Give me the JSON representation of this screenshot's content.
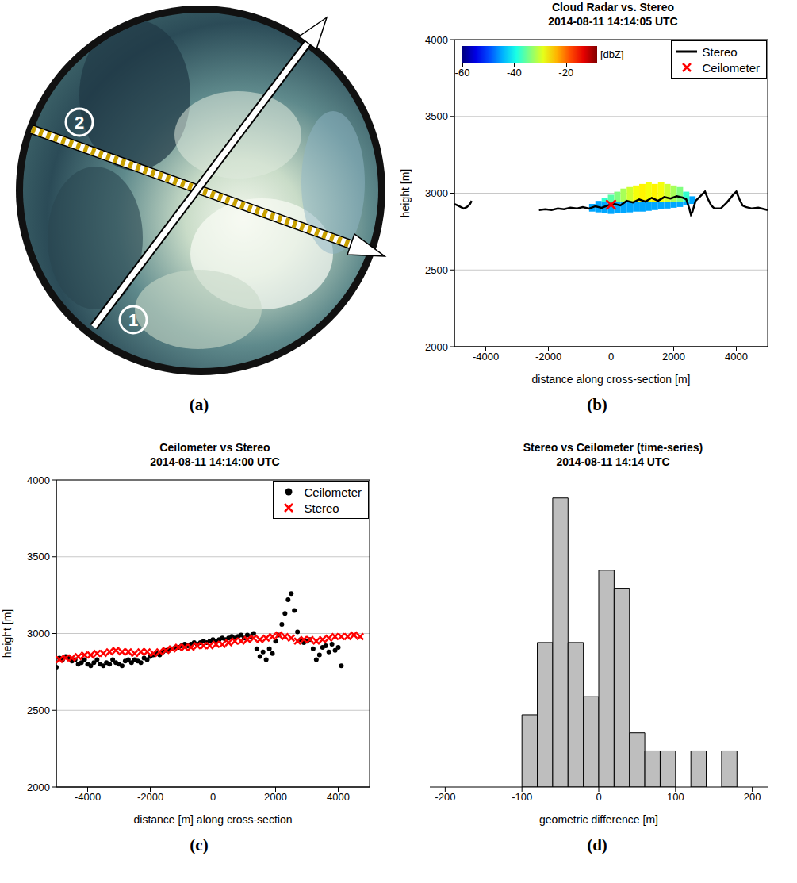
{
  "chart_data": [
    {
      "type": "image",
      "label": "(a)",
      "annotations": [
        "1",
        "2"
      ]
    },
    {
      "type": "line",
      "label": "(b)",
      "title": "Cloud Radar vs. Stereo",
      "subtitle": "2014-08-11 14:14:05 UTC",
      "x_label": "distance along cross-section [m]",
      "y_label": "height [m]",
      "xlim": [
        -5000,
        5000
      ],
      "xticks": [
        -4000,
        -2000,
        0,
        2000,
        4000
      ],
      "ylim": [
        2000,
        4000
      ],
      "yticks": [
        2000,
        2500,
        3000,
        3500,
        4000
      ],
      "grid": true,
      "legend": "top-right",
      "series": [
        {
          "name": "Stereo",
          "type": "line",
          "color": "#000000",
          "line_style": "solid",
          "x": [
            -5000,
            -4900,
            -4800,
            -4700,
            -4600,
            -4500,
            -4450,
            -4400,
            -2300,
            -2100,
            -1900,
            -1700,
            -1500,
            -1300,
            -1100,
            -900,
            -700,
            -500,
            -300,
            -100,
            0,
            100,
            300,
            500,
            700,
            900,
            1100,
            1300,
            1500,
            1700,
            1900,
            2100,
            2300,
            2400,
            2500,
            2550,
            2600,
            2700,
            2800,
            2900,
            3000,
            3100,
            3200,
            3300,
            3500,
            3700,
            3900,
            4000,
            4100,
            4200,
            4300,
            4500,
            4700,
            4900,
            5000
          ],
          "values": [
            2930,
            2920,
            2910,
            2900,
            2910,
            2930,
            2950,
            null,
            2890,
            2895,
            2890,
            2900,
            2895,
            2905,
            2900,
            2910,
            2900,
            2915,
            2905,
            2920,
            2925,
            2930,
            2920,
            2950,
            2940,
            2960,
            2945,
            2970,
            2950,
            2975,
            2965,
            2980,
            2970,
            2960,
            2900,
            2860,
            2880,
            2950,
            2970,
            2990,
            3010,
            2960,
            2920,
            2900,
            2900,
            2940,
            2990,
            3010,
            2960,
            2920,
            2910,
            2900,
            2905,
            2895,
            2890
          ]
        },
        {
          "name": "Ceilometer",
          "type": "scatter",
          "color": "#ff0000",
          "marker": "x",
          "x": [
            0
          ],
          "values": [
            2925
          ]
        }
      ],
      "radar": {
        "cells": [
          [
            -700,
            -500,
            2880,
            2930,
            -45
          ],
          [
            -500,
            -300,
            2875,
            2950,
            -45
          ],
          [
            -300,
            -100,
            2870,
            2945,
            -45
          ],
          [
            -300,
            -100,
            2945,
            2970,
            -38
          ],
          [
            -100,
            100,
            2865,
            2945,
            -45
          ],
          [
            -100,
            100,
            2945,
            2990,
            -36
          ],
          [
            100,
            300,
            2870,
            2945,
            -45
          ],
          [
            100,
            300,
            2945,
            3010,
            -34
          ],
          [
            300,
            500,
            2870,
            2945,
            -45
          ],
          [
            300,
            500,
            2945,
            3030,
            -32
          ],
          [
            500,
            700,
            2875,
            2945,
            -45
          ],
          [
            500,
            700,
            2945,
            3040,
            -30
          ],
          [
            700,
            900,
            2880,
            2945,
            -45
          ],
          [
            700,
            900,
            2945,
            3050,
            -28
          ],
          [
            900,
            1100,
            2880,
            2945,
            -45
          ],
          [
            900,
            1100,
            2945,
            3060,
            -27
          ],
          [
            1100,
            1300,
            2885,
            2945,
            -45
          ],
          [
            1100,
            1300,
            2945,
            3070,
            -28
          ],
          [
            1300,
            1500,
            2890,
            2945,
            -45
          ],
          [
            1300,
            1500,
            2945,
            3060,
            -27
          ],
          [
            1500,
            1700,
            2895,
            2945,
            -45
          ],
          [
            1500,
            1700,
            2945,
            3070,
            -28
          ],
          [
            1700,
            1900,
            2900,
            2945,
            -45
          ],
          [
            1700,
            1900,
            2945,
            3060,
            -30
          ],
          [
            1900,
            2100,
            2905,
            2945,
            -45
          ],
          [
            1900,
            2100,
            2945,
            3050,
            -32
          ],
          [
            2100,
            2300,
            2910,
            2945,
            -45
          ],
          [
            2100,
            2300,
            2945,
            3040,
            -34
          ],
          [
            2300,
            2500,
            2920,
            2945,
            -45
          ],
          [
            2300,
            2500,
            2945,
            3010,
            -38
          ],
          [
            2500,
            2700,
            2930,
            2980,
            -45
          ]
        ],
        "colorbar": {
          "range": [
            -60,
            -8
          ],
          "ticks": [
            -60,
            -40,
            -20
          ],
          "label": "[dbZ]"
        }
      }
    },
    {
      "type": "scatter",
      "label": "(c)",
      "title": "Ceilometer vs Stereo",
      "subtitle": "2014-08-11 14:14:00 UTC",
      "x_label": "distance [m] along cross-section",
      "y_label": "height [m]",
      "xlim": [
        -5000,
        5000
      ],
      "xticks": [
        -4000,
        -2000,
        0,
        2000,
        4000
      ],
      "ylim": [
        2000,
        4000
      ],
      "yticks": [
        2000,
        2500,
        3000,
        3500,
        4000
      ],
      "grid": true,
      "legend": "top-right",
      "series": [
        {
          "name": "Ceilometer",
          "type": "scatter",
          "color": "#000000",
          "marker": "circle",
          "x": [
            -5000,
            -4900,
            -4800,
            -4700,
            -4600,
            -4500,
            -4400,
            -4300,
            -4200,
            -4100,
            -4000,
            -3900,
            -3800,
            -3700,
            -3600,
            -3500,
            -3400,
            -3300,
            -3200,
            -3100,
            -3000,
            -2900,
            -2800,
            -2700,
            -2600,
            -2500,
            -2400,
            -2300,
            -2200,
            -2100,
            -2000,
            -1900,
            -1800,
            -1700,
            -1600,
            -1500,
            -1400,
            -1300,
            -1200,
            -1100,
            -1000,
            -900,
            -800,
            -700,
            -600,
            -500,
            -400,
            -300,
            -200,
            -100,
            0,
            100,
            200,
            300,
            400,
            500,
            600,
            700,
            800,
            900,
            1000,
            1100,
            1200,
            1300,
            1400,
            1500,
            1600,
            1700,
            1800,
            1900,
            2000,
            2100,
            2200,
            2300,
            2400,
            2500,
            2600,
            2700,
            2800,
            2900,
            3000,
            3100,
            3200,
            3300,
            3400,
            3500,
            3600,
            3700,
            3800,
            3900,
            4000,
            4100
          ],
          "values": [
            2780,
            2840,
            2830,
            2850,
            2840,
            2820,
            2830,
            2800,
            2810,
            2830,
            2800,
            2790,
            2810,
            2830,
            2800,
            2790,
            2810,
            2800,
            2830,
            2810,
            2800,
            2790,
            2820,
            2830,
            2810,
            2830,
            2820,
            2810,
            2840,
            2830,
            2850,
            2860,
            2870,
            2860,
            2880,
            2890,
            2890,
            2900,
            2910,
            2910,
            2920,
            2930,
            2920,
            2930,
            2940,
            2930,
            2940,
            2950,
            2940,
            2950,
            2960,
            2950,
            2960,
            2970,
            2960,
            2970,
            2980,
            2970,
            2980,
            2990,
            2970,
            2990,
            2980,
            3000,
            2900,
            2850,
            2880,
            2830,
            2900,
            2870,
            2950,
            2990,
            3060,
            3130,
            3220,
            3260,
            3150,
            3010,
            2960,
            2940,
            2950,
            2960,
            2900,
            2830,
            2860,
            2910,
            2920,
            2880,
            2930,
            2890,
            2910,
            2790
          ]
        },
        {
          "name": "Stereo",
          "type": "scatter",
          "color": "#ff0000",
          "marker": "x",
          "x": [
            -4900,
            -4700,
            -4500,
            -4300,
            -4100,
            -3900,
            -3700,
            -3500,
            -3300,
            -3100,
            -2900,
            -2700,
            -2500,
            -2300,
            -2100,
            -1900,
            -1700,
            -1500,
            -1300,
            -1100,
            -900,
            -700,
            -500,
            -300,
            -100,
            100,
            300,
            500,
            700,
            900,
            1100,
            1300,
            1500,
            1700,
            1900,
            2100,
            2300,
            2500,
            2700,
            2900,
            3100,
            3300,
            3500,
            3700,
            3900,
            4100,
            4300,
            4500,
            4700
          ],
          "values": [
            2830,
            2840,
            2840,
            2850,
            2860,
            2860,
            2870,
            2870,
            2880,
            2890,
            2880,
            2880,
            2870,
            2880,
            2880,
            2870,
            2880,
            2890,
            2900,
            2910,
            2910,
            2910,
            2920,
            2920,
            2920,
            2930,
            2930,
            2940,
            2950,
            2950,
            2960,
            2970,
            2960,
            2970,
            2980,
            2990,
            2980,
            2970,
            2950,
            2960,
            2960,
            2950,
            2960,
            2970,
            2980,
            2980,
            2980,
            2990,
            2980
          ]
        }
      ]
    },
    {
      "type": "histogram",
      "label": "(d)",
      "title": "Stereo vs Ceilometer (time-series)",
      "subtitle": "2014-08-11 14:14 UTC",
      "x_label": "geometric difference [m]",
      "xlim": [
        -220,
        220
      ],
      "xticks": [
        -200,
        -100,
        0,
        100,
        200
      ],
      "ylim": [
        0,
        17
      ],
      "tick_labels": "x",
      "color": "#bebebe",
      "bins": [
        -100,
        -80,
        -60,
        -40,
        -20,
        0,
        20,
        40,
        60,
        80,
        100,
        120,
        140,
        160,
        180
      ],
      "counts": [
        4,
        8,
        16,
        8,
        5,
        12,
        11,
        3,
        2,
        2,
        0,
        2,
        0,
        2
      ]
    }
  ]
}
